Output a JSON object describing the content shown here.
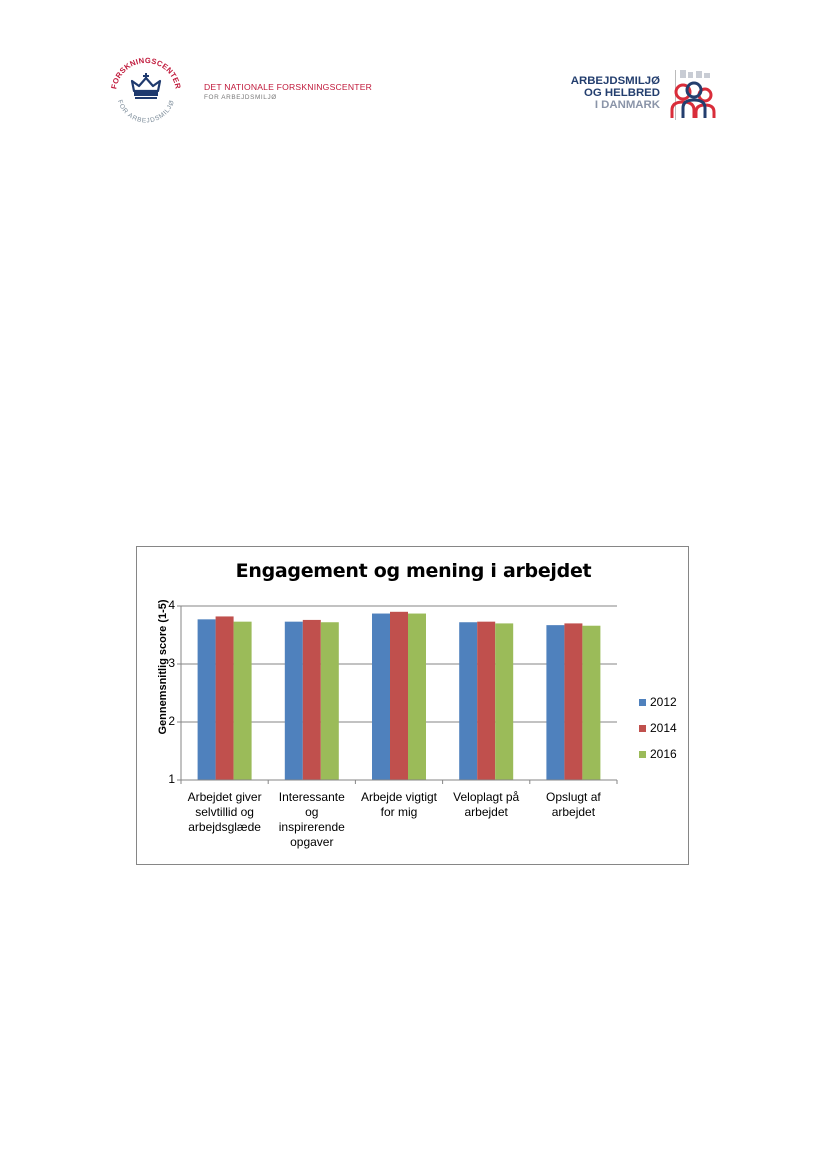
{
  "header": {
    "left_logo": {
      "ring_text": "FORSKNINGSCENTER FOR ARBEJDSMILJØ",
      "name_line1": "DET NATIONALE FORSKNINGSCENTER",
      "name_line2": "FOR ARBEJDSMILJØ",
      "icon": "crown-icon"
    },
    "right_logo": {
      "line1": "ARBEJDSMILJØ",
      "line2": "OG HELBRED",
      "line3": "I DANMARK",
      "icon": "people-group-icon"
    }
  },
  "chart_data": {
    "type": "bar",
    "title": "Engagement og mening i arbejdet",
    "xlabel": "",
    "ylabel": "Gennemsnitlig score (1-5)",
    "ylim": [
      1,
      4
    ],
    "yticks": [
      "1",
      "2",
      "3",
      "4"
    ],
    "grid": true,
    "legend_position": "right",
    "categories": [
      [
        "Arbejdet giver",
        "selvtillid og",
        "arbejdsglæde"
      ],
      [
        "Interessante",
        "og",
        "inspirerende",
        "opgaver"
      ],
      [
        "Arbejde vigtigt",
        "for mig"
      ],
      [
        "Veloplagt på",
        "arbejdet"
      ],
      [
        "Opslugt af",
        "arbejdet"
      ]
    ],
    "series": [
      {
        "name": "2012",
        "color": "#4f81bd",
        "values": [
          3.77,
          3.73,
          3.87,
          3.72,
          3.67
        ]
      },
      {
        "name": "2014",
        "color": "#c0504d",
        "values": [
          3.82,
          3.76,
          3.9,
          3.73,
          3.7
        ]
      },
      {
        "name": "2016",
        "color": "#9bbb59",
        "values": [
          3.73,
          3.72,
          3.87,
          3.7,
          3.66
        ]
      }
    ]
  }
}
